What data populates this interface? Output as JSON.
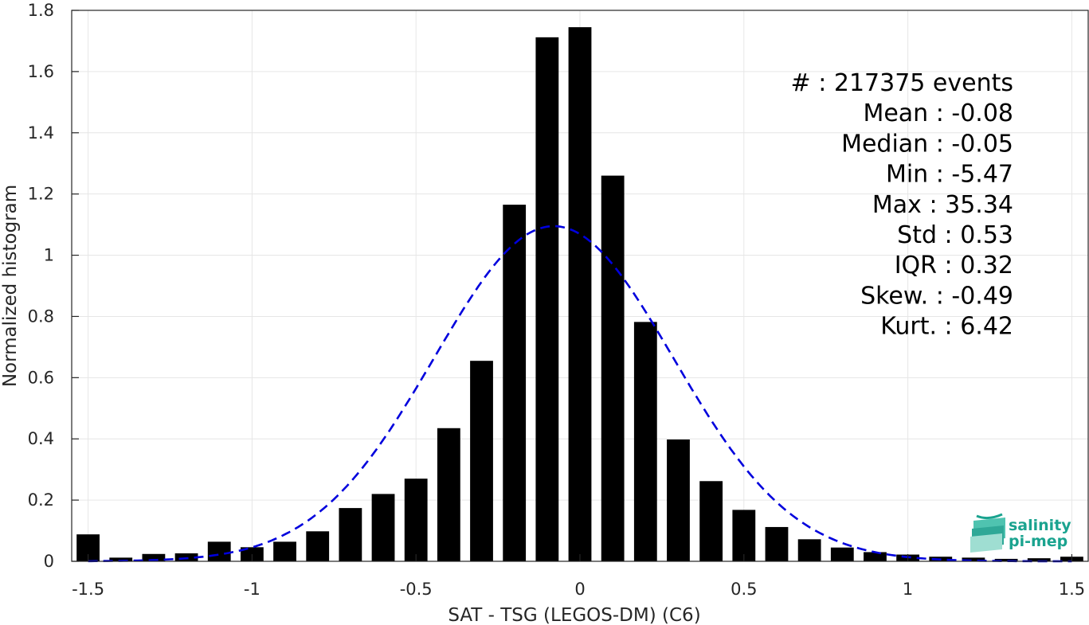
{
  "chart_data": {
    "type": "bar",
    "xlabel": "SAT - TSG (LEGOS-DM) (C6)",
    "ylabel": "Normalized histogram",
    "xlim": [
      -1.55,
      1.55
    ],
    "ylim": [
      0,
      1.8
    ],
    "xticks": [
      "-1.5",
      "-1",
      "-0.5",
      "0",
      "0.5",
      "1",
      "1.5"
    ],
    "yticks": [
      "0",
      "0.2",
      "0.4",
      "0.6",
      "0.8",
      "1",
      "1.2",
      "1.4",
      "1.6",
      "1.8"
    ],
    "grid": true,
    "bin_centers": [
      -1.5,
      -1.4,
      -1.3,
      -1.2,
      -1.1,
      -1.0,
      -0.9,
      -0.8,
      -0.7,
      -0.6,
      -0.5,
      -0.4,
      -0.3,
      -0.2,
      -0.1,
      0.0,
      0.1,
      0.2,
      0.3,
      0.4,
      0.5,
      0.6,
      0.7,
      0.8,
      0.9,
      1.0,
      1.1,
      1.2,
      1.3,
      1.4,
      1.5
    ],
    "values": [
      0.088,
      0.012,
      0.024,
      0.026,
      0.064,
      0.046,
      0.064,
      0.098,
      0.174,
      0.22,
      0.27,
      0.435,
      0.655,
      1.165,
      1.712,
      1.745,
      1.26,
      0.782,
      0.398,
      0.262,
      0.168,
      0.112,
      0.072,
      0.045,
      0.03,
      0.022,
      0.015,
      0.012,
      0.008,
      0.01,
      0.015
    ],
    "fit_curve": {
      "style": "dashed",
      "color": "#0000dd",
      "mean": -0.08,
      "std": 0.365,
      "peak": 1.095
    },
    "bar_color": "#000000",
    "stats": [
      {
        "label": "#  : 217375 events"
      },
      {
        "label": "Mean : -0.08"
      },
      {
        "label": "Median : -0.05"
      },
      {
        "label": "Min : -5.47"
      },
      {
        "label": "Max : 35.34"
      },
      {
        "label": "Std : 0.53"
      },
      {
        "label": "IQR : 0.32"
      },
      {
        "label": "Skew. : -0.49"
      },
      {
        "label": "Kurt. : 6.42"
      }
    ]
  },
  "logo": {
    "line1": "salinity",
    "line2": "pi-mep",
    "color": "#1aa38f"
  }
}
